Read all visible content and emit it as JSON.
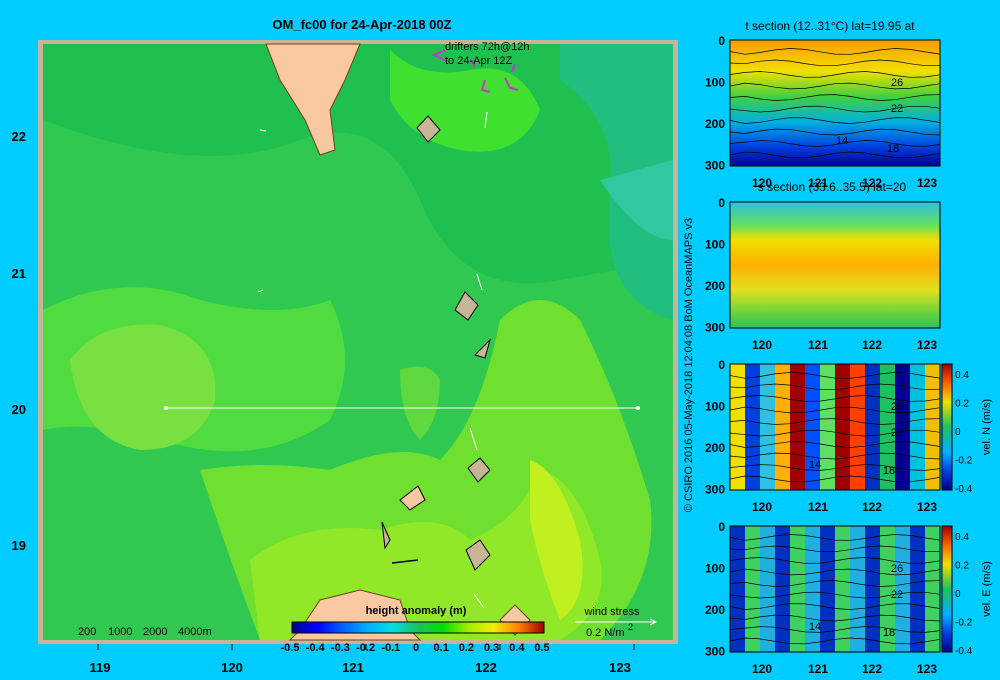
{
  "chart_data": [
    {
      "type": "heatmap",
      "title": "OM_fc00 for 24-Apr-2018 00Z",
      "x_ticks": [
        "119",
        "120",
        "121",
        "122",
        "123"
      ],
      "y_ticks": [
        "22",
        "21",
        "20",
        "19"
      ],
      "xlim": [
        118.5,
        123.5
      ],
      "ylim": [
        18.25,
        22.65
      ],
      "section_line": {
        "lon": [
          119.5,
          123.2
        ],
        "lat": 20
      },
      "annotations": {
        "drifters": [
          "drifters 72h@12h",
          "to 24-Apr 12Z"
        ],
        "depth_legend": [
          "200",
          "1000",
          "2000",
          "4000m"
        ]
      },
      "colorbar": {
        "label": "height anomaly (m)",
        "ticks": [
          "-0.5",
          "-0.4",
          "-0.3",
          "-0.2",
          "-0.1",
          "0",
          "0.1",
          "0.2",
          "0.3",
          "0.4",
          "0.5"
        ],
        "colors": [
          "#000090",
          "#0000ff",
          "#0060ff",
          "#00b0ff",
          "#00e0e0",
          "#20c060",
          "#00e000",
          "#a0f000",
          "#f0f000",
          "#ffa000",
          "#ff3000",
          "#a00000"
        ]
      },
      "wind_stress": {
        "label": "wind stress",
        "value": "0.2 N/m",
        "sup": "2"
      }
    },
    {
      "type": "heatmap",
      "title": "t section (12..31°C) lat=19.95 at",
      "x_ticks": [
        "120",
        "121",
        "122",
        "123"
      ],
      "y_ticks": [
        "0",
        "100",
        "200",
        "300"
      ],
      "contour_labels": [
        "26",
        "22",
        "18",
        "14"
      ]
    },
    {
      "type": "heatmap",
      "title": "s section (33.6..35.5) lat=20",
      "x_ticks": [
        "120",
        "121",
        "122",
        "123"
      ],
      "y_ticks": [
        "0",
        "100",
        "200",
        "300"
      ]
    },
    {
      "type": "heatmap",
      "x_ticks": [
        "120",
        "121",
        "122",
        "123"
      ],
      "y_ticks": [
        "0",
        "100",
        "200",
        "300"
      ],
      "contour_labels": [
        "26",
        "22",
        "14",
        "18"
      ],
      "colorbar": {
        "label": "vel. N (m/s)",
        "ticks": [
          "0.4",
          "0.2",
          "0",
          "-0.2",
          "-0.4"
        ]
      }
    },
    {
      "type": "heatmap",
      "x_ticks": [
        "120",
        "121",
        "122",
        "123"
      ],
      "y_ticks": [
        "0",
        "100",
        "200",
        "300"
      ],
      "contour_labels": [
        "26",
        "22",
        "14",
        "18"
      ],
      "colorbar": {
        "label": "vel. E (m/s)",
        "ticks": [
          "0.4",
          "0.2",
          "0",
          "-0.2",
          "-0.4"
        ]
      }
    }
  ],
  "credit": "© CSIRO 2016  05-May-2018 12:04:08 BoM OceanMAPS v3"
}
